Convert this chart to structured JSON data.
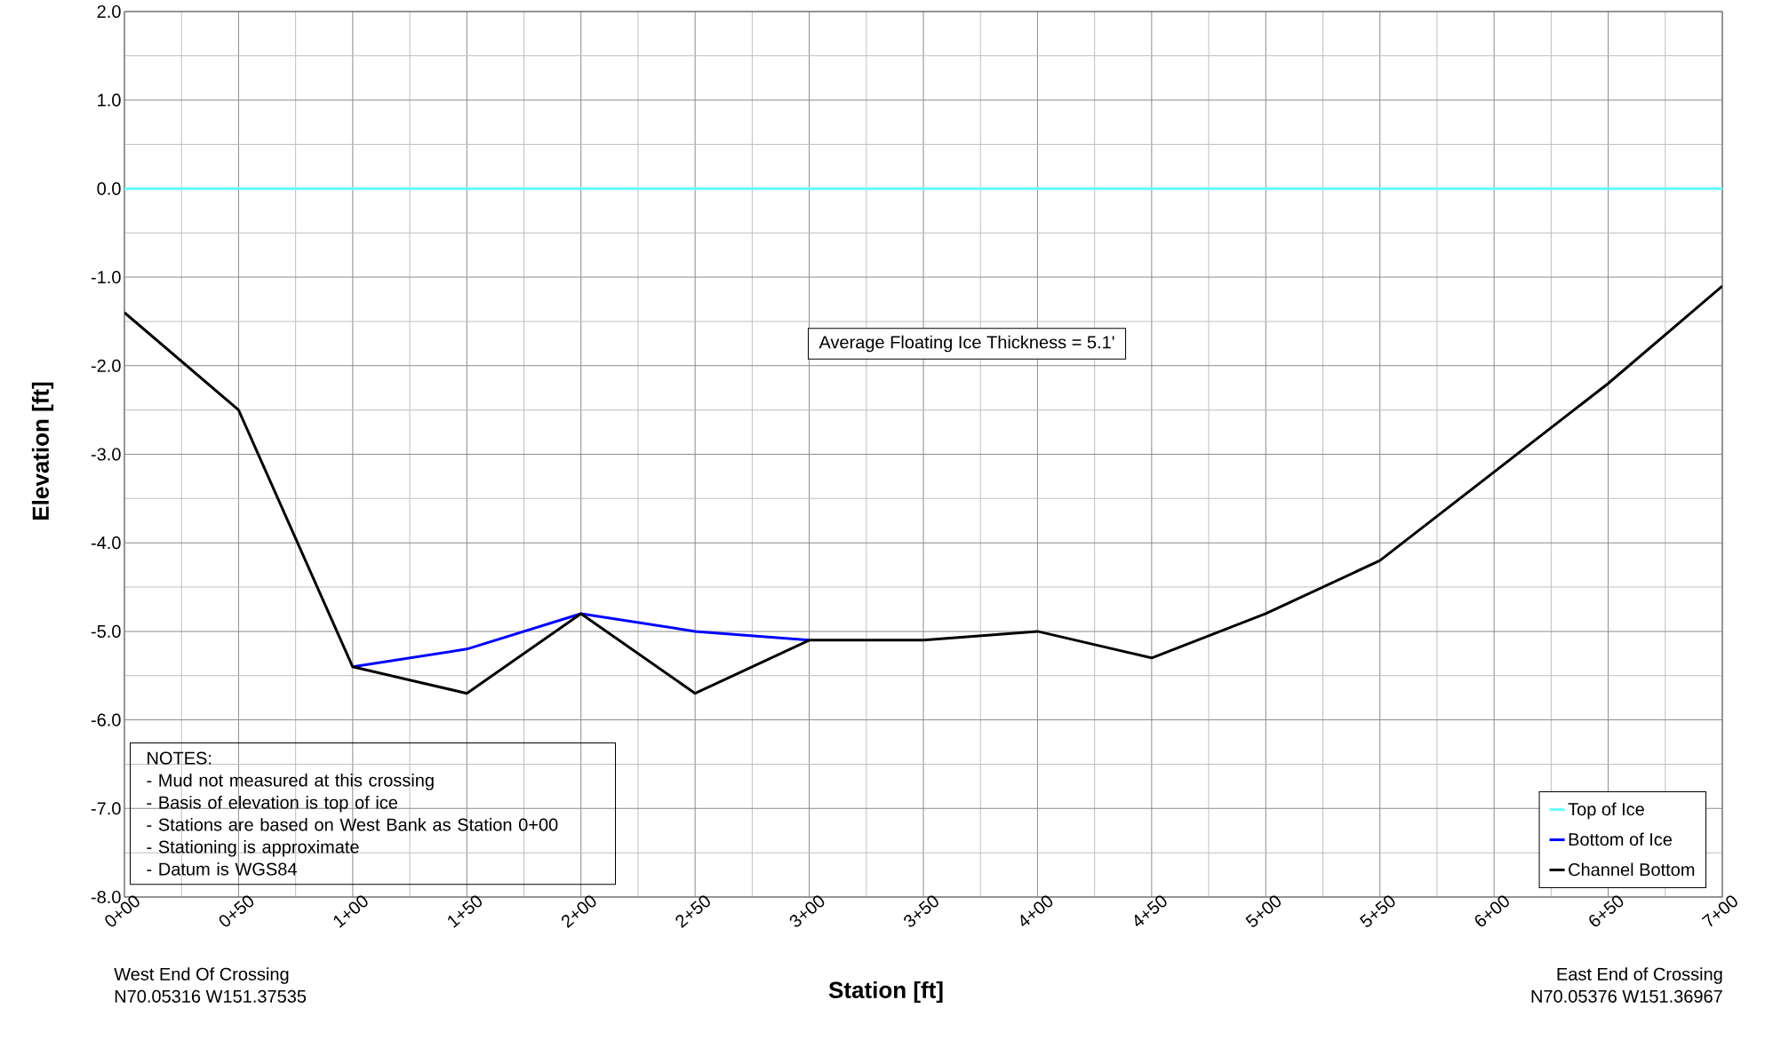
{
  "chart_data": {
    "type": "line",
    "xlabel": "Station [ft]",
    "ylabel": "Elevation [ft]",
    "categories": [
      "0+00",
      "0+50",
      "1+00",
      "1+50",
      "2+00",
      "2+50",
      "3+00",
      "3+50",
      "4+00",
      "4+50",
      "5+00",
      "5+50",
      "6+00",
      "6+50",
      "7+00"
    ],
    "ylim": [
      -8,
      2
    ],
    "yticks": [
      {
        "value": 2,
        "label": "2.0"
      },
      {
        "value": 1,
        "label": "1.0"
      },
      {
        "value": 0,
        "label": "0.0"
      },
      {
        "value": -1,
        "label": "-1.0"
      },
      {
        "value": -2,
        "label": "-2.0"
      },
      {
        "value": -3,
        "label": "-3.0"
      },
      {
        "value": -4,
        "label": "-4.0"
      },
      {
        "value": -5,
        "label": "-5.0"
      },
      {
        "value": -6,
        "label": "-6.0"
      },
      {
        "value": -7,
        "label": "-7.0"
      },
      {
        "value": -8,
        "label": "-8.0"
      }
    ],
    "grid": true,
    "legend": "bottom right",
    "marker": "none",
    "line_style": "solid",
    "series": [
      {
        "name": "Top of Ice",
        "color": "#66ffff",
        "values": [
          0,
          0,
          0,
          0,
          0,
          0,
          0,
          0,
          0,
          0,
          0,
          0,
          0,
          0,
          0
        ]
      },
      {
        "name": "Bottom of Ice",
        "color": "#0000ff",
        "values": [
          null,
          null,
          -5.4,
          -5.2,
          -4.8,
          -5.0,
          -5.1,
          null,
          null,
          null,
          null,
          null,
          null,
          null,
          null
        ]
      },
      {
        "name": "Channel Bottom",
        "color": "#000000",
        "values": [
          -1.4,
          -2.5,
          -5.4,
          -5.7,
          -4.8,
          -5.7,
          -5.1,
          -5.1,
          -5.0,
          -5.3,
          -4.8,
          -4.2,
          -3.2,
          -2.2,
          -1.1
        ]
      }
    ],
    "annotations": [
      "Average Floating Ice Thickness = 5.1'",
      "NOTES:",
      "- Mud not measured at this crossing",
      "- Basis of elevation is top of ice",
      "- Stations are based on West Bank as Station 0+00",
      "- Stationing is approximate",
      "- Datum is WGS84",
      "West End Of Crossing",
      "N70.05316  W151.37535",
      "East End of Crossing",
      "N70.05376  W151.36967"
    ]
  }
}
